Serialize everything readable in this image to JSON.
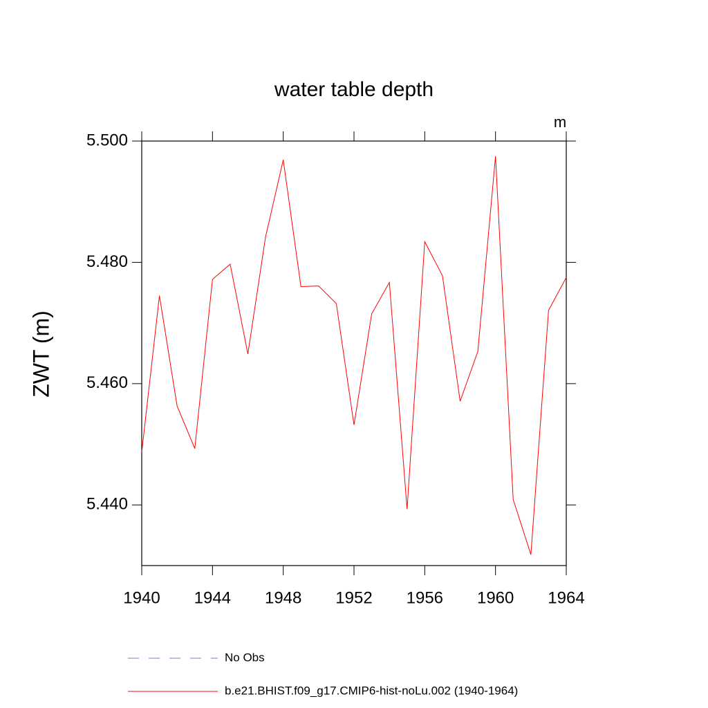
{
  "chart_data": {
    "type": "line",
    "title": "water table depth",
    "units": "m",
    "y_label": "ZWT  (m)",
    "x": [
      1940,
      1941,
      1942,
      1943,
      1944,
      1945,
      1946,
      1947,
      1948,
      1949,
      1950,
      1951,
      1952,
      1953,
      1954,
      1955,
      1956,
      1957,
      1958,
      1959,
      1960,
      1961,
      1962,
      1963,
      1964
    ],
    "series": [
      {
        "name": "No Obs",
        "color": "#7b7bc8",
        "dash": "dashed",
        "values": [
          null,
          null,
          null,
          null,
          null,
          null,
          null,
          null,
          null,
          null,
          null,
          null,
          null,
          null,
          null,
          null,
          null,
          null,
          null,
          null,
          null,
          null,
          null,
          null,
          null
        ]
      },
      {
        "name": "b.e21.BHIST.f09_g17.CMIP6-hist-noLu.002 (1940-1964)",
        "color": "#ff0000",
        "dash": "solid",
        "values": [
          5.4487,
          5.4745,
          5.4563,
          5.4493,
          5.4772,
          5.4797,
          5.4649,
          5.4842,
          5.4969,
          5.476,
          5.4761,
          5.4732,
          5.4532,
          5.4715,
          5.4767,
          5.4393,
          5.4834,
          5.4778,
          5.4571,
          5.4653,
          5.4975,
          5.4409,
          5.4318,
          5.4721,
          5.4775
        ]
      }
    ],
    "xlim": [
      1940,
      1964
    ],
    "xticks": [
      1940,
      1944,
      1948,
      1952,
      1956,
      1960,
      1964
    ],
    "ylim": [
      5.43,
      5.5
    ],
    "yticks": [
      {
        "value": 5.44,
        "label": "5.440"
      },
      {
        "value": 5.46,
        "label": "5.460"
      },
      {
        "value": 5.48,
        "label": "5.480"
      },
      {
        "value": 5.5,
        "label": "5.500"
      }
    ],
    "grid": false,
    "legend": "bottom"
  }
}
